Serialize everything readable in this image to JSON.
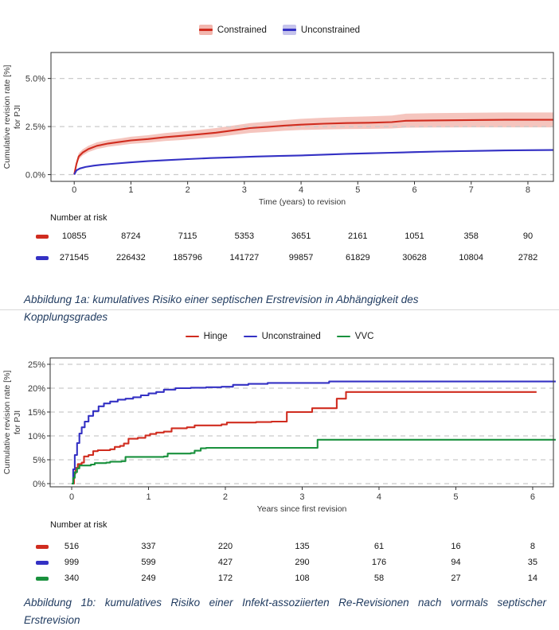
{
  "colors": {
    "red": "#d02c1f",
    "blue": "#3431c4",
    "green": "#19913d",
    "red_band": "#f2b6ae",
    "blue_band": "#c5c3ec",
    "grid": "#cbcbcb",
    "border": "#404040",
    "axis_text": "#383838",
    "caption_text": "#1f3a5f",
    "rule": "#d8d8d8"
  },
  "chart_data": [
    {
      "type": "line",
      "interpolation": "linear",
      "title": "",
      "xlabel": "Time (years) to revision",
      "ylabel_lines": [
        "Cumulative revision rate [%]",
        "for PJI"
      ],
      "legend_position": "top-center",
      "grid": "horizontal-dashed",
      "xlim": [
        -0.41,
        8.45
      ],
      "ylim": [
        -0.35,
        6.35
      ],
      "xtick_values": [
        0,
        1,
        2,
        3,
        4,
        5,
        6,
        7,
        8
      ],
      "xtick_labels": [
        "0",
        "1",
        "2",
        "3",
        "4",
        "5",
        "6",
        "7",
        "8"
      ],
      "ytick_values": [
        0,
        2.5,
        5.0
      ],
      "ytick_labels": [
        "0.0%",
        "2.5%",
        "5.0%"
      ],
      "series": [
        {
          "name": "Constrained",
          "color": "#d02c1f",
          "band_color": "#f2b6ae",
          "x": [
            0,
            0.04,
            0.08,
            0.15,
            0.25,
            0.4,
            0.6,
            0.8,
            1.0,
            1.3,
            1.6,
            1.9,
            2.2,
            2.5,
            2.8,
            3.1,
            3.4,
            3.7,
            4.0,
            4.4,
            4.8,
            5.2,
            5.6,
            5.85,
            6.3,
            7.0,
            7.6,
            8.45
          ],
          "y": [
            0,
            0.55,
            0.95,
            1.15,
            1.33,
            1.5,
            1.62,
            1.7,
            1.78,
            1.85,
            1.95,
            2.02,
            2.1,
            2.18,
            2.3,
            2.42,
            2.48,
            2.55,
            2.6,
            2.65,
            2.68,
            2.7,
            2.73,
            2.8,
            2.82,
            2.84,
            2.85,
            2.85
          ],
          "band_low": [
            0,
            0.42,
            0.8,
            1.0,
            1.17,
            1.33,
            1.45,
            1.52,
            1.6,
            1.66,
            1.75,
            1.8,
            1.88,
            1.95,
            2.06,
            2.17,
            2.22,
            2.28,
            2.32,
            2.35,
            2.37,
            2.38,
            2.4,
            2.44,
            2.45,
            2.46,
            2.46,
            2.46
          ],
          "band_high": [
            0,
            0.7,
            1.12,
            1.32,
            1.5,
            1.68,
            1.8,
            1.88,
            1.97,
            2.05,
            2.16,
            2.24,
            2.33,
            2.42,
            2.55,
            2.68,
            2.75,
            2.83,
            2.9,
            2.96,
            3.0,
            3.03,
            3.07,
            3.17,
            3.2,
            3.22,
            3.23,
            3.23
          ]
        },
        {
          "name": "Unconstrained",
          "color": "#3431c4",
          "band_color": "#c5c3ec",
          "x": [
            0,
            0.04,
            0.1,
            0.2,
            0.35,
            0.5,
            0.75,
            1.0,
            1.3,
            1.6,
            2.0,
            2.4,
            2.8,
            3.2,
            3.6,
            4.0,
            4.4,
            4.8,
            5.2,
            5.6,
            6.0,
            6.4,
            6.8,
            7.2,
            7.6,
            8.0,
            8.45
          ],
          "y": [
            0,
            0.22,
            0.32,
            0.4,
            0.47,
            0.52,
            0.58,
            0.64,
            0.7,
            0.75,
            0.81,
            0.86,
            0.9,
            0.94,
            0.97,
            1.0,
            1.04,
            1.08,
            1.11,
            1.14,
            1.17,
            1.2,
            1.22,
            1.24,
            1.26,
            1.27,
            1.28
          ],
          "band_low": [
            0,
            0.19,
            0.29,
            0.37,
            0.44,
            0.49,
            0.55,
            0.61,
            0.67,
            0.72,
            0.78,
            0.83,
            0.87,
            0.91,
            0.94,
            0.97,
            1.01,
            1.04,
            1.07,
            1.1,
            1.13,
            1.16,
            1.18,
            1.2,
            1.22,
            1.23,
            1.24
          ],
          "band_high": [
            0,
            0.25,
            0.35,
            0.43,
            0.5,
            0.55,
            0.61,
            0.67,
            0.73,
            0.78,
            0.84,
            0.89,
            0.93,
            0.97,
            1.0,
            1.03,
            1.07,
            1.12,
            1.15,
            1.18,
            1.21,
            1.24,
            1.26,
            1.28,
            1.3,
            1.31,
            1.32
          ]
        }
      ]
    },
    {
      "type": "line",
      "interpolation": "step-after",
      "title": "",
      "xlabel": "Years since first revision",
      "ylabel_lines": [
        "Cumulative revision rate [%]",
        "for PJI"
      ],
      "legend_position": "top-center",
      "grid": "horizontal-dashed",
      "xlim": [
        -0.28,
        6.27
      ],
      "ylim": [
        -0.67,
        26.33
      ],
      "xtick_values": [
        0,
        1,
        2,
        3,
        4,
        5,
        6
      ],
      "xtick_labels": [
        "0",
        "1",
        "2",
        "3",
        "4",
        "5",
        "6"
      ],
      "ytick_values": [
        0,
        5,
        10,
        15,
        20,
        25
      ],
      "ytick_labels": [
        "0%",
        "5%",
        "10%",
        "15%",
        "20%",
        "25%"
      ],
      "series": [
        {
          "name": "Hinge",
          "color": "#d02c1f",
          "x": [
            0,
            0.03,
            0.05,
            0.08,
            0.13,
            0.16,
            0.22,
            0.28,
            0.34,
            0.5,
            0.56,
            0.63,
            0.68,
            0.74,
            0.86,
            0.96,
            1.02,
            1.1,
            1.2,
            1.3,
            1.5,
            1.6,
            1.95,
            2.02,
            2.4,
            2.6,
            2.8,
            3.13,
            3.45,
            3.57,
            6.05
          ],
          "y": [
            0,
            2.1,
            3.3,
            4.1,
            4.4,
            5.7,
            6.0,
            6.8,
            7.0,
            7.2,
            7.7,
            7.9,
            8.4,
            9.4,
            9.6,
            10.1,
            10.4,
            10.7,
            10.9,
            11.6,
            11.8,
            12.2,
            12.4,
            12.8,
            12.9,
            13.0,
            15.0,
            15.8,
            17.8,
            19.2,
            19.2
          ]
        },
        {
          "name": "Unconstrained",
          "color": "#3431c4",
          "x": [
            0,
            0.02,
            0.04,
            0.07,
            0.1,
            0.13,
            0.17,
            0.22,
            0.28,
            0.35,
            0.42,
            0.5,
            0.6,
            0.7,
            0.8,
            0.9,
            1.0,
            1.1,
            1.2,
            1.35,
            1.55,
            1.75,
            1.95,
            2.1,
            2.3,
            2.55,
            3.35,
            6.3
          ],
          "y": [
            0,
            3.0,
            6.0,
            8.5,
            10.5,
            11.8,
            13.0,
            14.2,
            15.2,
            16.2,
            16.8,
            17.2,
            17.6,
            17.8,
            18.1,
            18.5,
            18.9,
            19.2,
            19.7,
            20.0,
            20.1,
            20.2,
            20.3,
            20.7,
            20.9,
            21.1,
            21.4,
            21.4
          ]
        },
        {
          "name": "VVC",
          "color": "#19913d",
          "x": [
            0,
            0.02,
            0.04,
            0.07,
            0.1,
            0.25,
            0.3,
            0.45,
            0.5,
            0.65,
            0.7,
            1.2,
            1.25,
            1.55,
            1.6,
            1.68,
            1.75,
            3.2,
            6.3
          ],
          "y": [
            0,
            1.2,
            2.4,
            3.2,
            3.8,
            4.0,
            4.3,
            4.4,
            4.6,
            4.7,
            5.6,
            5.7,
            6.3,
            6.4,
            6.9,
            7.4,
            7.5,
            9.2,
            9.2
          ]
        }
      ]
    }
  ],
  "figures": [
    {
      "legend": [
        {
          "label": "Constrained",
          "color": "#d02c1f",
          "band_color": "#f2b6ae"
        },
        {
          "label": "Unconstrained",
          "color": "#3431c4",
          "band_color": "#c5c3ec"
        }
      ],
      "risk": {
        "title": "Number at risk",
        "columns": [
          0,
          1,
          2,
          3,
          4,
          5,
          6,
          7,
          8
        ],
        "rows": [
          {
            "name": "Constrained",
            "color": "#d02c1f",
            "values": [
              "10855",
              "8724",
              "7115",
              "5353",
              "3651",
              "2161",
              "1051",
              "358",
              "90"
            ]
          },
          {
            "name": "Unconstrained",
            "color": "#3431c4",
            "values": [
              "271545",
              "226432",
              "185796",
              "141727",
              "99857",
              "61829",
              "30628",
              "10804",
              "2782"
            ]
          }
        ]
      },
      "caption_lines": [
        "Abbildung 1a: kumulatives Risiko einer septischen Erstrevision in Abhängigkeit des",
        "Kopplungsgrades"
      ]
    },
    {
      "legend": [
        {
          "label": "Hinge",
          "color": "#d02c1f"
        },
        {
          "label": "Unconstrained",
          "color": "#3431c4"
        },
        {
          "label": "VVC",
          "color": "#19913d"
        }
      ],
      "risk": {
        "title": "Number at risk",
        "columns": [
          0,
          1,
          2,
          3,
          4,
          5,
          6
        ],
        "rows": [
          {
            "name": "Hinge",
            "color": "#d02c1f",
            "values": [
              "516",
              "337",
              "220",
              "135",
              "61",
              "16",
              "8"
            ]
          },
          {
            "name": "Unconstrained",
            "color": "#3431c4",
            "values": [
              "999",
              "599",
              "427",
              "290",
              "176",
              "94",
              "35"
            ]
          },
          {
            "name": "VVC",
            "color": "#19913d",
            "values": [
              "340",
              "249",
              "172",
              "108",
              "58",
              "27",
              "14"
            ]
          }
        ]
      },
      "caption_lines": [
        "Abbildung 1b: kumulatives Risiko einer Infekt-assoziierten Re-Revisionen nach vormals septischer",
        "Erstrevision"
      ]
    }
  ]
}
